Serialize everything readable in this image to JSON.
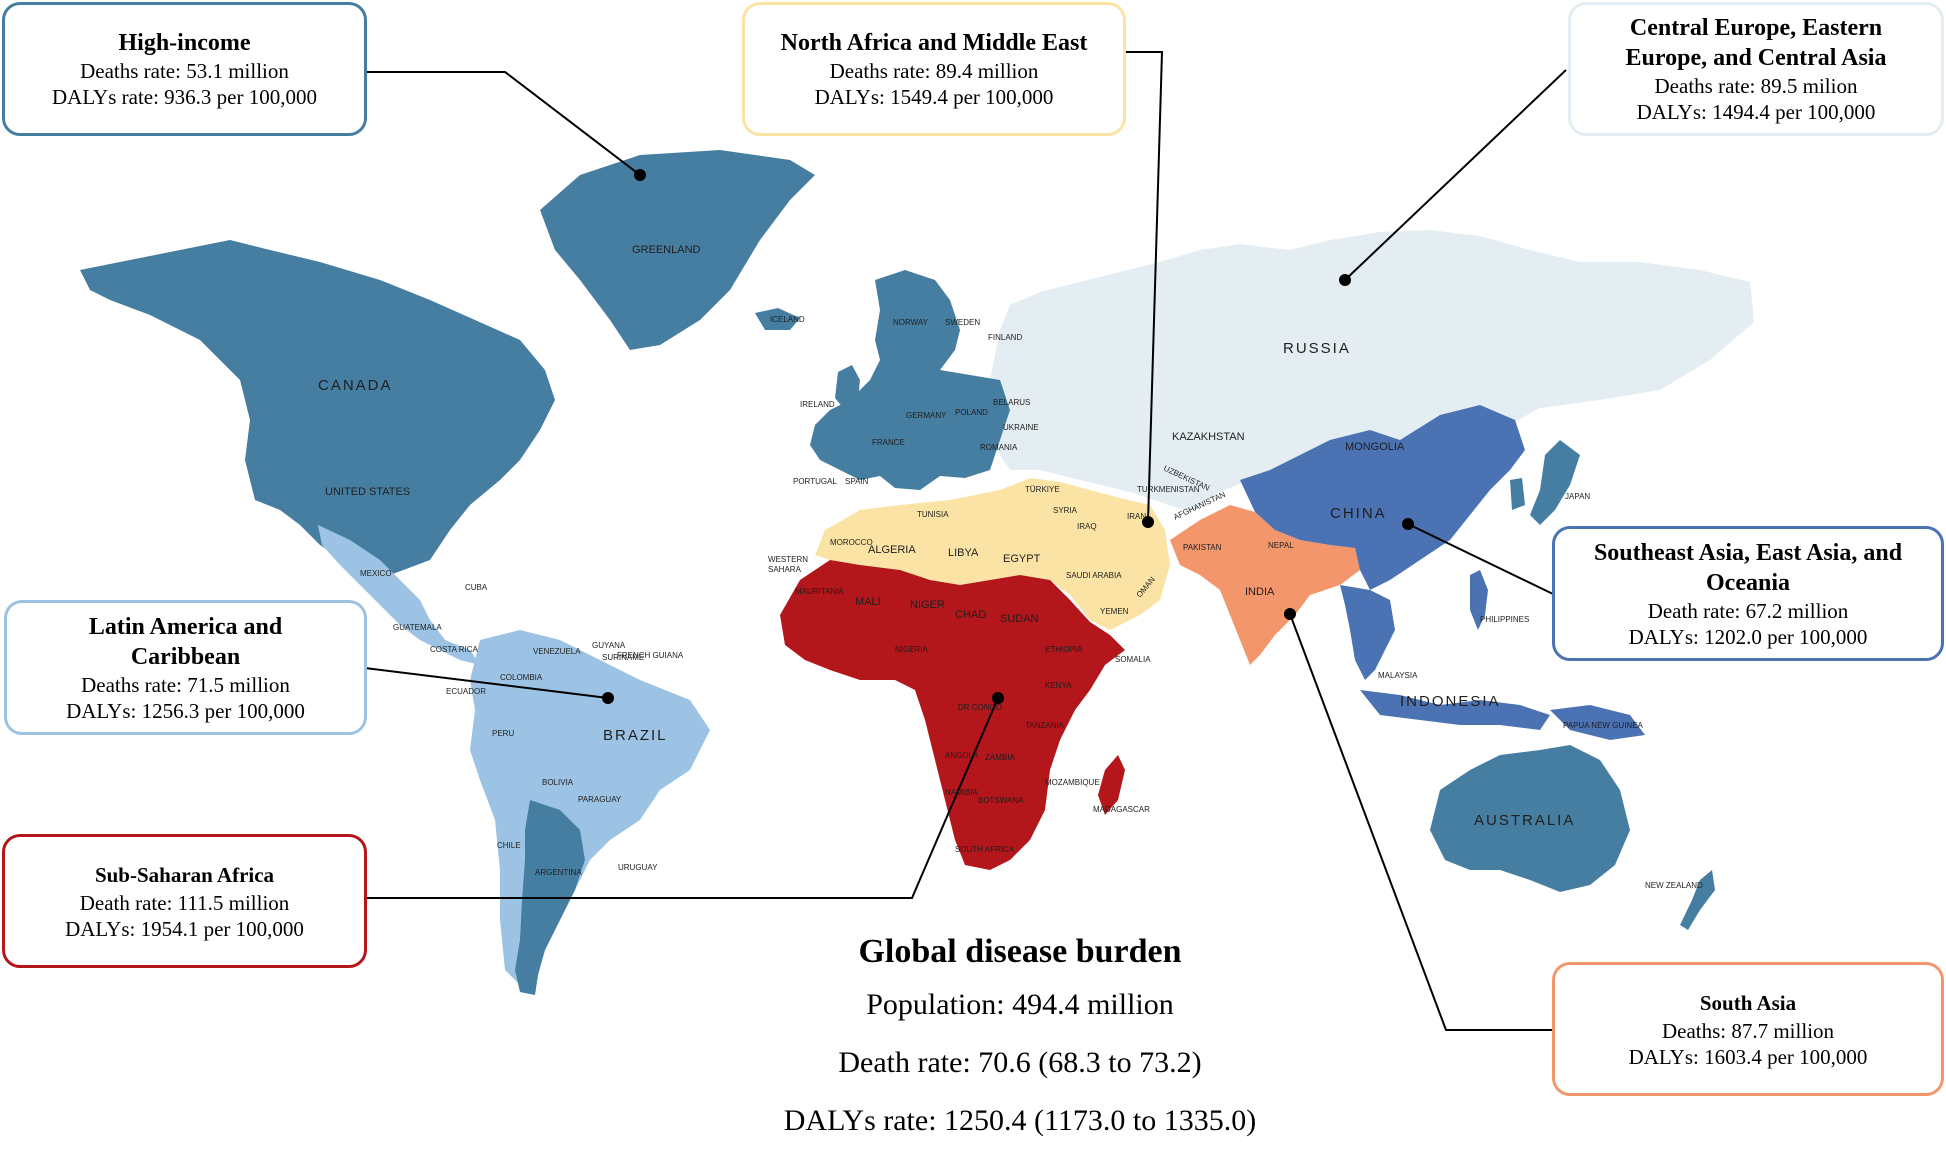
{
  "regions": {
    "high_income": {
      "title": "High-income",
      "line1": "Deaths rate: 53.1 million",
      "line2": "DALYs rate: 936.3 per 100,000",
      "color": "#467EA1"
    },
    "north_africa_middle_east": {
      "title": "North Africa and Middle East",
      "line1": "Deaths rate: 89.4 million",
      "line2": "DALYs: 1549.4 per 100,000",
      "color": "#FBE3A5"
    },
    "central_europe": {
      "title_line1": "Central Europe, Eastern",
      "title_line2": "Europe, and Central Asia",
      "line1": "Deaths rate: 89.5 milion",
      "line2": "DALYs: 1494.4 per 100,000",
      "color": "#E4EEF2"
    },
    "latin_america": {
      "title_line1": "Latin America and",
      "title_line2": "Caribbean",
      "line1": "Deaths rate: 71.5 million",
      "line2": "DALYs: 1256.3 per 100,000",
      "color": "#9CC3E3"
    },
    "southeast_asia": {
      "title_line1": "Southeast Asia, East Asia, and",
      "title_line2": "Oceania",
      "line1": "Death rate: 67.2 million",
      "line2": "DALYs: 1202.0 per 100,000",
      "color": "#4B72B3"
    },
    "sub_saharan_africa": {
      "title": "Sub-Saharan Africa",
      "line1": "Death rate: 111.5 million",
      "line2": "DALYs: 1954.1 per 100,000",
      "color": "#B3161B"
    },
    "south_asia": {
      "title": "South Asia",
      "line1": "Deaths: 87.7 million",
      "line2": "DALYs: 1603.4 per 100,000",
      "color": "#F4966B"
    }
  },
  "summary": {
    "title": "Global disease burden",
    "population": "Population: 494.4  million",
    "death_rate": "Death rate: 70.6 (68.3 to 73.2)",
    "dalys_rate": "DALYs rate: 1250.4 (1173.0 to 1335.0)"
  },
  "map_labels": {
    "greenland": "GREENLAND",
    "canada": "CANADA",
    "united_states": "UNITED STATES",
    "mexico": "MEXICO",
    "cuba": "CUBA",
    "venezuela": "VENEZUELA",
    "colombia": "COLOMBIA",
    "ecuador": "ECUADOR",
    "peru": "PERU",
    "brazil": "BRAZIL",
    "bolivia": "BOLIVIA",
    "chile": "CHILE",
    "argentina": "ARGENTINA",
    "uruguay": "URUGUAY",
    "paraguay": "PARAGUAY",
    "guyana": "GUYANA",
    "suriname": "SURINAME",
    "french_guiana": "FRENCH GUIANA",
    "guatemala": "GUATEMALA",
    "costa_rica": "COSTA RICA",
    "iceland": "ICELAND",
    "norway": "NORWAY",
    "sweden": "SWEDEN",
    "finland": "FINLAND",
    "ireland": "IRELAND",
    "france": "FRANCE",
    "spain": "SPAIN",
    "portugal": "PORTUGAL",
    "germany": "GERMANY",
    "poland": "POLAND",
    "belarus": "BELARUS",
    "ukraine": "UKRAINE",
    "romania": "ROMANIA",
    "russia": "RUSSIA",
    "kazakhstan": "KAZAKHSTAN",
    "mongolia": "MONGOLIA",
    "china": "CHINA",
    "japan": "JAPAN",
    "uzbekistan": "UZBEKISTAN",
    "turkmenistan": "TURKMENISTAN",
    "afghanistan": "AFGHANISTAN",
    "turkiye": "TÜRKIYE",
    "syria": "SYRIA",
    "iraq": "IRAQ",
    "iran": "IRAN",
    "saudi_arabia": "SAUDI ARABIA",
    "yemen": "YEMEN",
    "oman": "OMAN",
    "egypt": "EGYPT",
    "libya": "LIBYA",
    "algeria": "ALGERIA",
    "morocco": "MOROCCO",
    "tunisia": "TUNISIA",
    "western_sahara_1": "WESTERN",
    "western_sahara_2": "SAHARA",
    "sudan": "SUDAN",
    "pakistan": "PAKISTAN",
    "nepal": "NEPAL",
    "india": "INDIA",
    "mali": "MALI",
    "niger": "NIGER",
    "chad": "CHAD",
    "nigeria": "NIGERIA",
    "ethiopia": "ETHIOPIA",
    "somalia": "SOMALIA",
    "kenya": "KENYA",
    "dr_congo": "DR CONGO",
    "tanzania": "TANZANIA",
    "angola": "ANGOLA",
    "zambia": "ZAMBIA",
    "namibia": "NAMIBIA",
    "botswana": "BOTSWANA",
    "mozambique": "MOZAMBIQUE",
    "madagascar": "MADAGASCAR",
    "south_africa": "SOUTH AFRICA",
    "mauritania": "MAURITANIA",
    "philippines": "PHILIPPINES",
    "malaysia": "MALAYSIA",
    "indonesia": "INDONESIA",
    "papua_new_guinea": "PAPUA NEW GUINEA",
    "australia": "AUSTRALIA",
    "new_zealand": "NEW ZEALAND"
  }
}
